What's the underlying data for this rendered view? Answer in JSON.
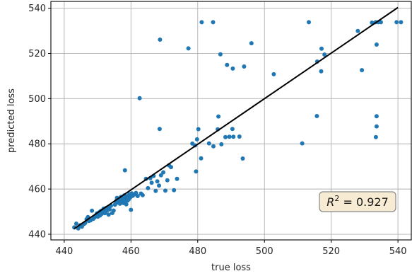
{
  "chart_data": {
    "type": "scatter",
    "xlabel": "true loss",
    "ylabel": "predicted loss",
    "xlim": [
      436,
      544
    ],
    "ylim": [
      437.5,
      543
    ],
    "xticks": [
      440,
      460,
      480,
      500,
      520,
      540
    ],
    "yticks": [
      440,
      460,
      480,
      500,
      520,
      540
    ],
    "grid": true,
    "point_color": "#1f77b4",
    "fit_line": {
      "color": "#000000",
      "x": [
        443,
        540
      ],
      "y": [
        442.5,
        540.3
      ]
    },
    "annotation": {
      "text": "R² = 0.927",
      "value": "0.927",
      "position": "bottom-right",
      "facecolor": "#f7ebd3",
      "edgecolor": "#888888"
    },
    "series": [
      {
        "points": [
          [
            443,
            443.0
          ],
          [
            443.6,
            444.7
          ],
          [
            444.2,
            442.6
          ],
          [
            444.8,
            444.0
          ],
          [
            445.3,
            443.4
          ],
          [
            445.9,
            444.5
          ],
          [
            446.3,
            445.0
          ],
          [
            446.7,
            446.6
          ],
          [
            447.1,
            447.6
          ],
          [
            447.4,
            445.9
          ],
          [
            447.9,
            446.2
          ],
          [
            448.3,
            450.4
          ],
          [
            448.7,
            446.8
          ],
          [
            449.1,
            447.5
          ],
          [
            449.6,
            448.2
          ],
          [
            449.8,
            449.2
          ],
          [
            450.1,
            447.8
          ],
          [
            450.3,
            448.9
          ],
          [
            450.5,
            449.7
          ],
          [
            450.7,
            448.3
          ],
          [
            450.9,
            450.2
          ],
          [
            451.2,
            449.0
          ],
          [
            451.4,
            450.6
          ],
          [
            451.6,
            449.5
          ],
          [
            451.8,
            451.3
          ],
          [
            452.0,
            450.0
          ],
          [
            452.2,
            449.3
          ],
          [
            452.5,
            451.6
          ],
          [
            452.8,
            450.4
          ],
          [
            453.1,
            452.0
          ],
          [
            453.3,
            448.7
          ],
          [
            453.6,
            451.0
          ],
          [
            454.0,
            452.6
          ],
          [
            454.4,
            449.4
          ],
          [
            454.8,
            450.5
          ],
          [
            455.2,
            453.1
          ],
          [
            455.5,
            454.6
          ],
          [
            455.8,
            456.1
          ],
          [
            456.1,
            454.0
          ],
          [
            456.4,
            455.2
          ],
          [
            456.7,
            453.5
          ],
          [
            457.0,
            456.5
          ],
          [
            457.2,
            454.3
          ],
          [
            457.5,
            455.7
          ],
          [
            457.7,
            453.8
          ],
          [
            458.0,
            457.2
          ],
          [
            458.2,
            454.6
          ],
          [
            458.4,
            455.9
          ],
          [
            458.6,
            453.2
          ],
          [
            458.8,
            456.8
          ],
          [
            459.0,
            454.9
          ],
          [
            459.3,
            455.4
          ],
          [
            459.5,
            457.7
          ],
          [
            459.8,
            456.3
          ],
          [
            460.0,
            450.8
          ],
          [
            460.2,
            458.1
          ],
          [
            460.5,
            457.0
          ],
          [
            461.0,
            457.6
          ],
          [
            461.5,
            458.3
          ],
          [
            462.0,
            456.9
          ],
          [
            463.0,
            458.0
          ],
          [
            463.5,
            457.3
          ],
          [
            458.2,
            468.3
          ],
          [
            464.5,
            464.5
          ],
          [
            465.1,
            460.4
          ],
          [
            465.8,
            464.8
          ],
          [
            466.2,
            462.8
          ],
          [
            466.8,
            465.8
          ],
          [
            467.4,
            459.2
          ],
          [
            467.9,
            463.4
          ],
          [
            468.4,
            461.5
          ],
          [
            469.0,
            466.1
          ],
          [
            469.7,
            467.4
          ],
          [
            470.3,
            459.3
          ],
          [
            470.9,
            463.9
          ],
          [
            471.4,
            470.5
          ],
          [
            472.0,
            469.7
          ],
          [
            472.9,
            459.5
          ],
          [
            473.8,
            464.5
          ],
          [
            479.5,
            467.8
          ],
          [
            478.4,
            480.1
          ],
          [
            479.2,
            479.3
          ],
          [
            479.8,
            482.0
          ],
          [
            480.2,
            486.5
          ],
          [
            481.0,
            473.6
          ],
          [
            483.4,
            480.2
          ],
          [
            484.7,
            478.9
          ],
          [
            486.0,
            486.4
          ],
          [
            486.2,
            492.1
          ],
          [
            487.1,
            479.8
          ],
          [
            488.3,
            483.0
          ],
          [
            489.5,
            483.1
          ],
          [
            490.4,
            486.6
          ],
          [
            490.7,
            483.1
          ],
          [
            492.5,
            483.2
          ],
          [
            493.5,
            473.5
          ],
          [
            468.6,
            486.6
          ],
          [
            462.6,
            500.2
          ],
          [
            468.7,
            526.1
          ],
          [
            477.2,
            522.2
          ],
          [
            481.2,
            533.8
          ],
          [
            484.6,
            533.8
          ],
          [
            486.8,
            519.6
          ],
          [
            488.8,
            514.9
          ],
          [
            490.5,
            513.3
          ],
          [
            493.9,
            514.2
          ],
          [
            496.1,
            524.5
          ],
          [
            502.8,
            510.8
          ],
          [
            513.3,
            533.8
          ],
          [
            511.3,
            480.2
          ],
          [
            515.7,
            492.3
          ],
          [
            515.8,
            516.4
          ],
          [
            517.0,
            512.1
          ],
          [
            517.1,
            522.1
          ],
          [
            518.0,
            519.5
          ],
          [
            528.0,
            529.9
          ],
          [
            529.2,
            512.6
          ],
          [
            532.2,
            533.6
          ],
          [
            533.3,
            533.8
          ],
          [
            533.6,
            523.9
          ],
          [
            533.4,
            483.0
          ],
          [
            533.6,
            487.7
          ],
          [
            533.6,
            492.2
          ],
          [
            534.1,
            533.8
          ],
          [
            534.9,
            533.8
          ],
          [
            539.6,
            533.8
          ],
          [
            540.9,
            533.8
          ]
        ]
      }
    ]
  }
}
